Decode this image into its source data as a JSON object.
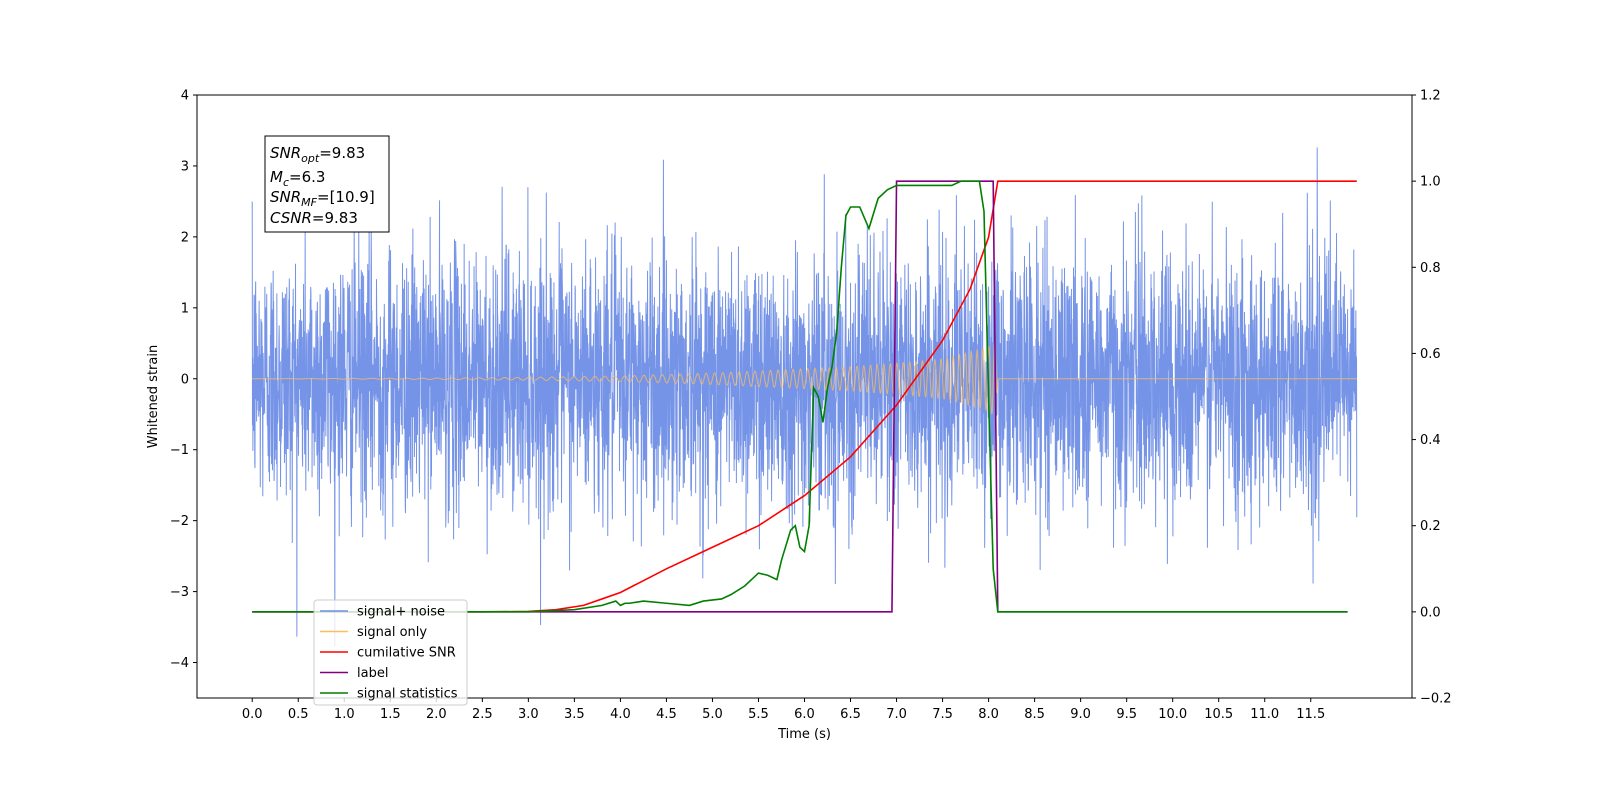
{
  "chart_data": {
    "type": "line",
    "title": "",
    "xlabel": "Time (s)",
    "ylabel": "Whitened strain",
    "xlim": [
      -0.6,
      12.6
    ],
    "ylim": [
      -4.5,
      4
    ],
    "y2lim": [
      -0.2,
      1.2
    ],
    "x_ticks": [
      "0.0",
      "0.5",
      "1.0",
      "1.5",
      "2.0",
      "2.5",
      "3.0",
      "3.5",
      "4.0",
      "4.5",
      "5.0",
      "5.5",
      "6.0",
      "6.5",
      "7.0",
      "7.5",
      "8.0",
      "8.5",
      "9.0",
      "9.5",
      "10.0",
      "10.5",
      "11.0",
      "11.5"
    ],
    "y_ticks": [
      "4",
      "3",
      "2",
      "1",
      "0",
      "−1",
      "−2",
      "−3",
      "−4"
    ],
    "y2_ticks": [
      "1.2",
      "1.0",
      "0.8",
      "0.6",
      "0.4",
      "0.2",
      "0.0",
      "−0.2"
    ],
    "grid": false,
    "legend_position": "lower-left",
    "annotation": {
      "snr_opt": {
        "base": "SNR",
        "sub": "opt",
        "value": "=9.83"
      },
      "mc": {
        "base": "M",
        "sub": "c",
        "value": "=6.3"
      },
      "snr_mf": {
        "base": "SNR",
        "sub": "MF",
        "value": "=[10.9]"
      },
      "csnr": {
        "base": "CSNR",
        "sub": "",
        "value": "=9.83"
      }
    },
    "series": [
      {
        "name": "signal+ noise",
        "color": "#6f8ee6",
        "axis": "left",
        "x_range": [
          0,
          12
        ],
        "noise_std": 0.9
      },
      {
        "name": "signal only",
        "color": "#ffbe5c",
        "axis": "left",
        "envelope": {
          "x": [
            0,
            2,
            3,
            4,
            5,
            6,
            6.5,
            7,
            7.5,
            8.0,
            8.08,
            8.1,
            12
          ],
          "amp": [
            0,
            0.01,
            0.02,
            0.04,
            0.08,
            0.14,
            0.17,
            0.22,
            0.28,
            0.45,
            0.55,
            0,
            0
          ]
        }
      },
      {
        "name": "cumilative SNR",
        "color": "#ff0000",
        "axis": "right",
        "x": [
          0,
          2.5,
          3,
          3.3,
          3.6,
          3.8,
          4.0,
          4.5,
          5.0,
          5.5,
          6.0,
          6.5,
          7.0,
          7.5,
          7.8,
          8.0,
          8.1,
          12
        ],
        "y": [
          0,
          0,
          0.001,
          0.005,
          0.015,
          0.03,
          0.045,
          0.1,
          0.15,
          0.2,
          0.27,
          0.36,
          0.48,
          0.63,
          0.75,
          0.87,
          1.0,
          1.0
        ]
      },
      {
        "name": "label",
        "color": "#800080",
        "axis": "right",
        "x": [
          0,
          6.95,
          7.0,
          8.05,
          8.1,
          11.9
        ],
        "y": [
          0,
          0,
          1.0,
          1.0,
          0,
          0
        ]
      },
      {
        "name": "signal statistics",
        "color": "#008000",
        "axis": "right",
        "x": [
          0,
          3.0,
          3.5,
          3.8,
          3.95,
          4.0,
          4.05,
          4.1,
          4.25,
          4.5,
          4.75,
          4.9,
          5.1,
          5.2,
          5.35,
          5.5,
          5.6,
          5.7,
          5.75,
          5.85,
          5.9,
          5.95,
          6.0,
          6.05,
          6.1,
          6.15,
          6.2,
          6.25,
          6.3,
          6.35,
          6.4,
          6.45,
          6.5,
          6.6,
          6.7,
          6.8,
          6.9,
          7.0,
          7.1,
          7.3,
          7.4,
          7.5,
          7.6,
          7.7,
          7.9,
          7.95,
          8.0,
          8.05,
          8.1,
          8.15,
          8.3,
          11.9
        ],
        "y": [
          0,
          0,
          0.005,
          0.015,
          0.025,
          0.015,
          0.02,
          0.02,
          0.025,
          0.02,
          0.015,
          0.025,
          0.03,
          0.04,
          0.06,
          0.09,
          0.085,
          0.075,
          0.12,
          0.19,
          0.2,
          0.15,
          0.14,
          0.2,
          0.52,
          0.5,
          0.44,
          0.52,
          0.57,
          0.65,
          0.8,
          0.92,
          0.94,
          0.94,
          0.89,
          0.96,
          0.98,
          0.99,
          0.99,
          0.99,
          0.99,
          0.99,
          0.99,
          1.0,
          1.0,
          0.93,
          0.5,
          0.1,
          0.0,
          0.0,
          0.0,
          0.0
        ]
      }
    ]
  }
}
